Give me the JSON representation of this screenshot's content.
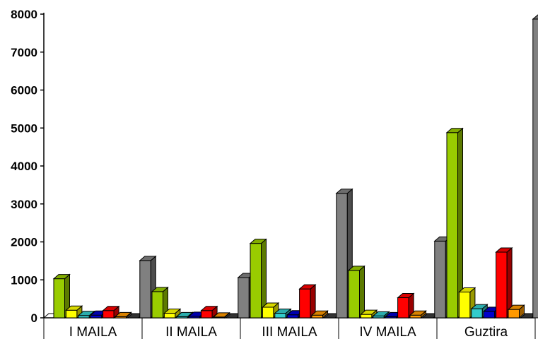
{
  "chart_data": {
    "type": "bar",
    "style": "3d-clustered-column",
    "title": "",
    "xlabel": "",
    "ylabel": "",
    "categories": [
      "I MAILA",
      "II MAILA",
      "III MAILA",
      "IV MAILA",
      "Guztira"
    ],
    "ylim": [
      0,
      8000
    ],
    "yticks": [
      0,
      1000,
      2000,
      3000,
      4000,
      5000,
      6000,
      7000,
      8000
    ],
    "grid": false,
    "legend": "none",
    "series": [
      {
        "color": "#99CC00",
        "values": [
          1030,
          690,
          1960,
          1250,
          4880
        ]
      },
      {
        "color": "#FFFF00",
        "values": [
          200,
          120,
          280,
          90,
          680
        ]
      },
      {
        "color": "#33CCCC",
        "values": [
          60,
          30,
          120,
          50,
          240
        ]
      },
      {
        "color": "#0000CC",
        "values": [
          70,
          40,
          80,
          30,
          170
        ]
      },
      {
        "color": "#FF0000",
        "values": [
          190,
          190,
          760,
          530,
          1730
        ]
      },
      {
        "color": "#FF9900",
        "values": [
          30,
          20,
          70,
          70,
          220
        ]
      },
      {
        "color": "#000000",
        "values": [
          0,
          0,
          0,
          0,
          0
        ]
      },
      {
        "color": "#808080",
        "values": [
          1510,
          1060,
          3280,
          2020,
          7870
        ]
      }
    ]
  }
}
